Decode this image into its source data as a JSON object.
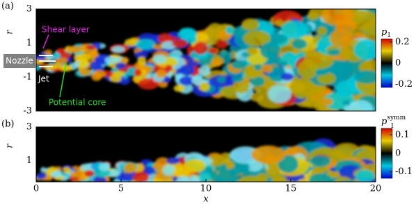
{
  "xlabel": "x",
  "xlim": [
    0,
    20
  ],
  "xticks": [
    0,
    5,
    10,
    15,
    20
  ],
  "panels": [
    {
      "label": "(a)",
      "ylabel": "r",
      "ylim": [
        -3,
        3
      ],
      "yticks": [
        -3,
        -1,
        1,
        3
      ],
      "colorbar": {
        "base": "p",
        "sub": "1",
        "lim": [
          -0.23,
          0.23
        ],
        "ticks": [
          -0.2,
          0,
          0.2
        ]
      },
      "annotations": {
        "shear": "Shear layer",
        "nozzle": "Nozzle",
        "jet": "Jet",
        "core": "Potential core"
      }
    },
    {
      "label": "(b)",
      "ylabel": "r",
      "ylim": [
        -0.25,
        3
      ],
      "yticks": [
        1,
        3
      ],
      "colorbar": {
        "base": "p",
        "sub": "1",
        "sup": "symm",
        "lim": [
          -0.135,
          0.135
        ],
        "ticks": [
          -0.1,
          0,
          0.1
        ]
      }
    }
  ]
}
